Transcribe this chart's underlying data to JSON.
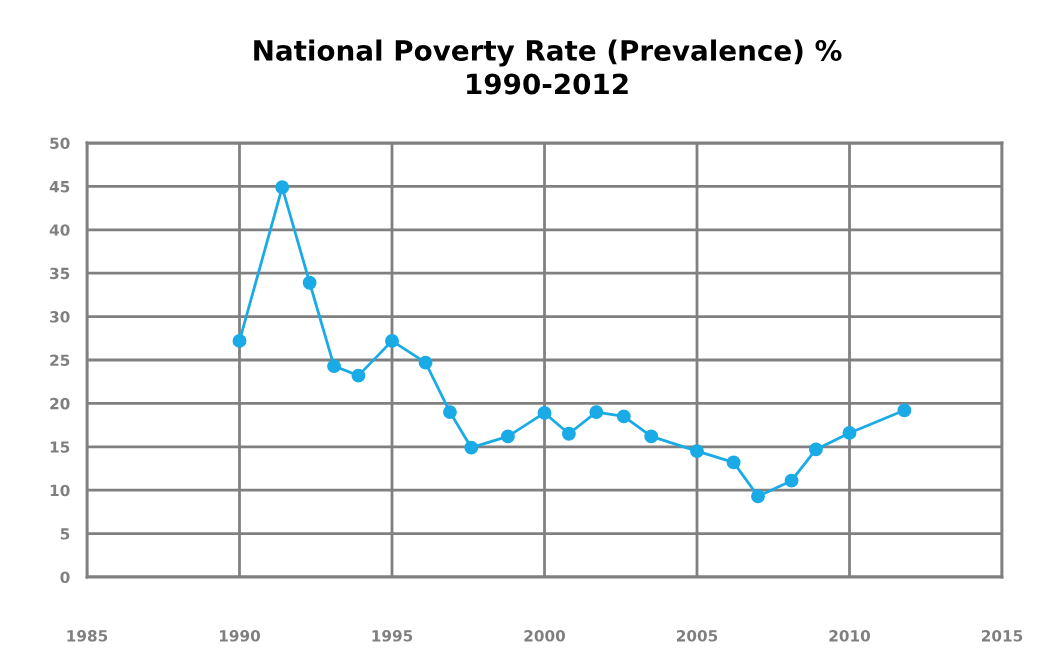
{
  "chart_data": {
    "type": "line",
    "title": "National Poverty Rate (Prevalence) %\n1990-2012",
    "x": [
      1990.0,
      1991.4,
      1992.3,
      1993.1,
      1993.9,
      1995.0,
      1996.1,
      1996.9,
      1997.6,
      1998.8,
      2000.0,
      2000.8,
      2001.7,
      2002.6,
      2003.5,
      2005.0,
      2006.2,
      2007.0,
      2008.1,
      2008.9,
      2010.0,
      2011.8
    ],
    "series": [
      {
        "color": "#1aabe6",
        "values": [
          27.2,
          44.9,
          33.9,
          24.3,
          23.2,
          27.2,
          24.7,
          19.0,
          14.9,
          16.2,
          18.9,
          16.5,
          19.0,
          18.5,
          16.2,
          14.5,
          13.2,
          9.3,
          11.1,
          14.7,
          16.6,
          19.2
        ]
      }
    ],
    "xlim": [
      1985,
      2015
    ],
    "xticks": [
      1985,
      1990,
      1995,
      2000,
      2005,
      2010,
      2015
    ],
    "ylim": [
      0,
      50
    ],
    "yticks": [
      0,
      5,
      10,
      15,
      20,
      25,
      30,
      35,
      40,
      45,
      50
    ],
    "grid": true,
    "marker": "circle",
    "line_style": "solid"
  }
}
